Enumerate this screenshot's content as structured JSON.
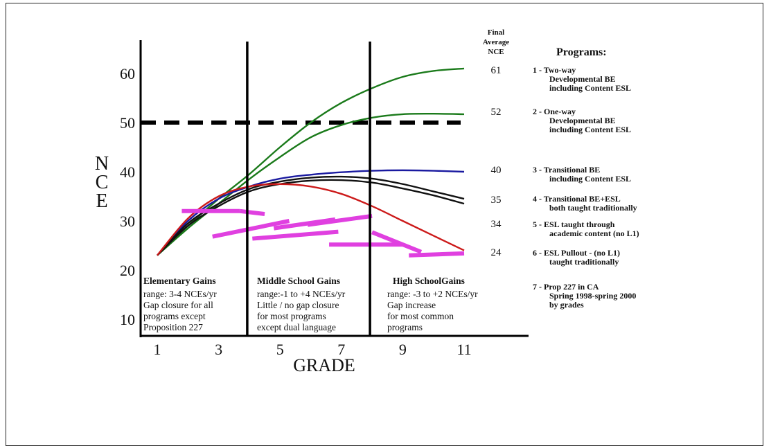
{
  "chart_data": {
    "type": "line",
    "xlabel": "GRADE",
    "ylabel": "NCE",
    "x_ticks": [
      "1",
      "3",
      "5",
      "7",
      "9",
      "11"
    ],
    "y_ticks": [
      "10",
      "20",
      "30",
      "40",
      "50",
      "60"
    ],
    "ylim": [
      8,
      66
    ],
    "xlim": [
      0.6,
      12.5
    ],
    "reference_line": {
      "y": 50,
      "style": "dashed"
    },
    "grade_dividers": [
      4,
      8
    ],
    "series": [
      {
        "color": "#1a7a1a",
        "points": [
          [
            1,
            23
          ],
          [
            2,
            29
          ],
          [
            3,
            34.5
          ],
          [
            4,
            39.5
          ],
          [
            5,
            45
          ],
          [
            6,
            50
          ],
          [
            7,
            54
          ],
          [
            8,
            57
          ],
          [
            9,
            59.3
          ],
          [
            10,
            60.5
          ],
          [
            11,
            61
          ]
        ]
      },
      {
        "color": "#1a7a1a",
        "points": [
          [
            1,
            23
          ],
          [
            2,
            28.5
          ],
          [
            3,
            33.5
          ],
          [
            4,
            38.5
          ],
          [
            5,
            43
          ],
          [
            6,
            47
          ],
          [
            7,
            49.5
          ],
          [
            8,
            51
          ],
          [
            9,
            51.7
          ],
          [
            10,
            51.8
          ],
          [
            11,
            51.7
          ]
        ]
      },
      {
        "color": "#1a1aa0",
        "points": [
          [
            1,
            23
          ],
          [
            2,
            30
          ],
          [
            3,
            34.5
          ],
          [
            4,
            37
          ],
          [
            5,
            38.6
          ],
          [
            6,
            39.4
          ],
          [
            7,
            39.9
          ],
          [
            8,
            40.2
          ],
          [
            9,
            40.3
          ],
          [
            10,
            40.2
          ],
          [
            11,
            40
          ]
        ]
      },
      {
        "color": "#111111",
        "points": [
          [
            1,
            23
          ],
          [
            2,
            29.5
          ],
          [
            3,
            33.5
          ],
          [
            4,
            36.5
          ],
          [
            5,
            38
          ],
          [
            6,
            38.8
          ],
          [
            7,
            39
          ],
          [
            8,
            38.6
          ],
          [
            9,
            37.5
          ],
          [
            10,
            36
          ],
          [
            11,
            34.5
          ]
        ]
      },
      {
        "color": "#111111",
        "points": [
          [
            1,
            23
          ],
          [
            2,
            29
          ],
          [
            3,
            33
          ],
          [
            4,
            36
          ],
          [
            5,
            37.5
          ],
          [
            6,
            38.2
          ],
          [
            7,
            38.3
          ],
          [
            8,
            37.8
          ],
          [
            9,
            36.6
          ],
          [
            10,
            35.2
          ],
          [
            11,
            33.5
          ]
        ]
      },
      {
        "color": "#cc1a1a",
        "points": [
          [
            1,
            23
          ],
          [
            2,
            30.5
          ],
          [
            3,
            35
          ],
          [
            4,
            37
          ],
          [
            5,
            37.5
          ],
          [
            6,
            37
          ],
          [
            7,
            35.5
          ],
          [
            8,
            33
          ],
          [
            9,
            30
          ],
          [
            10,
            27
          ],
          [
            11,
            24
          ]
        ]
      }
    ],
    "prop227_segments": [
      [
        [
          1.8,
          32
        ],
        [
          3.7,
          32
        ]
      ],
      [
        [
          3.7,
          32
        ],
        [
          4.5,
          31.4
        ]
      ],
      [
        [
          2.8,
          26.8
        ],
        [
          5.3,
          30
        ]
      ],
      [
        [
          4.8,
          28.5
        ],
        [
          6.8,
          30.3
        ]
      ],
      [
        [
          5.9,
          29.2
        ],
        [
          8,
          31
        ]
      ],
      [
        [
          4.1,
          26.4
        ],
        [
          6.9,
          27.8
        ]
      ],
      [
        [
          6.6,
          25.2
        ],
        [
          9,
          25.2
        ]
      ],
      [
        [
          8,
          27.7
        ],
        [
          9.6,
          23.7
        ]
      ],
      [
        [
          9.2,
          23
        ],
        [
          11,
          23.4
        ]
      ]
    ],
    "series_color_7": "#e040e0",
    "segments": [
      {
        "title": "Elementary Gains",
        "lines": [
          "range:  3-4 NCEs/yr",
          "Gap closure for all",
          "programs except",
          "Proposition 227"
        ]
      },
      {
        "title": "Middle School Gains",
        "lines": [
          "range:-1 to +4 NCEs/yr",
          "Little / no gap closure",
          "for most programs",
          "except dual language"
        ]
      },
      {
        "title": "High SchoolGains",
        "lines": [
          "range: -3 to +2 NCEs/yr",
          "Gap increase",
          "for most common",
          "programs"
        ]
      }
    ],
    "final_average": {
      "title": [
        "Final",
        "Average",
        "NCE"
      ],
      "values": [
        "61",
        "52",
        "40",
        "35",
        "34",
        "24"
      ]
    },
    "programs": {
      "title": "Programs:",
      "items": [
        {
          "lines": [
            "1 - Two-way",
            "Developmental BE",
            "including Content ESL"
          ]
        },
        {
          "lines": [
            "2 - One-way",
            "Developmental BE",
            "including Content ESL"
          ]
        },
        {
          "lines": [
            "3 - Transitional BE",
            "including Content ESL"
          ]
        },
        {
          "lines": [
            "4 - Transitional BE+ESL",
            "both taught traditionally"
          ]
        },
        {
          "lines": [
            "5 - ESL taught through",
            "academic content (no L1)"
          ]
        },
        {
          "lines": [
            "6 - ESL Pullout - (no L1)",
            "taught traditionally"
          ]
        },
        {
          "lines": [
            "7 - Prop 227 in CA",
            "Spring 1998-spring 2000",
            "by grades"
          ]
        }
      ]
    }
  }
}
